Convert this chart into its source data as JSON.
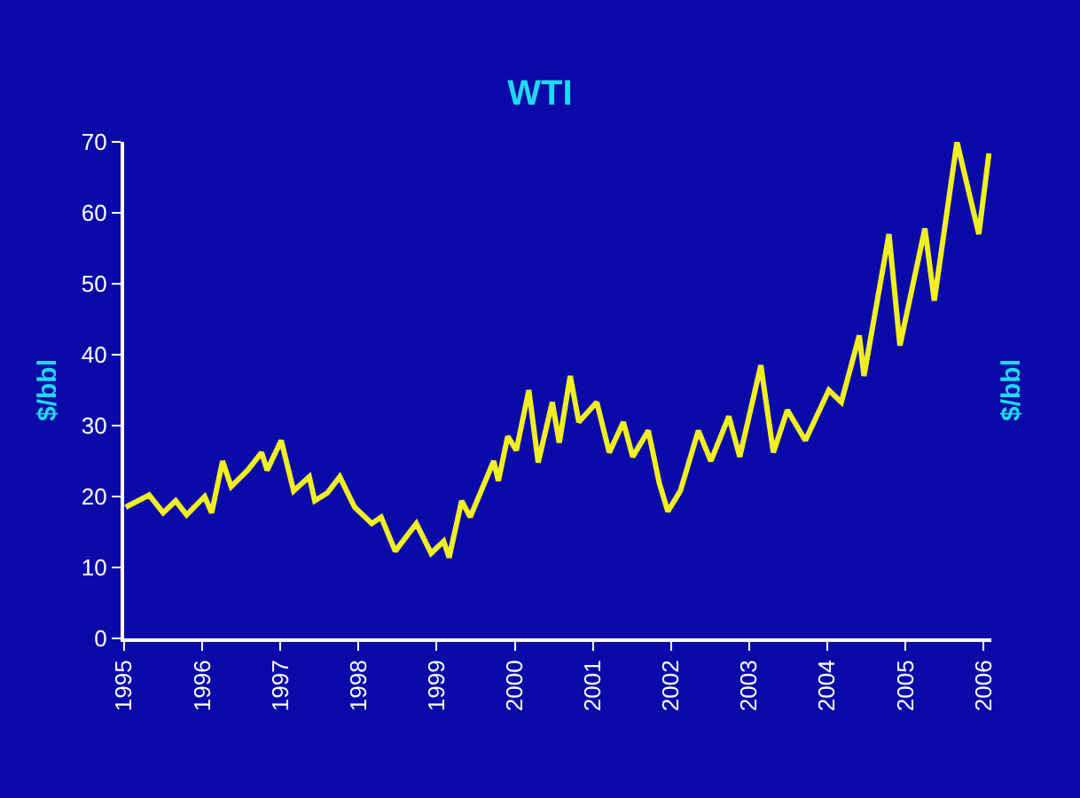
{
  "chart_data": {
    "type": "line",
    "title": "WTI",
    "ylabel": "$/bbl",
    "y2label": "$/bbl",
    "x": [
      1995.02,
      1995.32,
      1995.5,
      1995.66,
      1995.8,
      1996.03,
      1996.12,
      1996.26,
      1996.37,
      1996.58,
      1996.76,
      1996.83,
      1997.01,
      1997.17,
      1997.37,
      1997.44,
      1997.6,
      1997.76,
      1997.95,
      1998.17,
      1998.29,
      1998.47,
      1998.74,
      1998.93,
      1999.09,
      1999.16,
      1999.32,
      1999.43,
      1999.73,
      1999.79,
      1999.91,
      2000.02,
      2000.18,
      2000.3,
      2000.48,
      2000.57,
      2000.71,
      2000.82,
      2001.05,
      2001.21,
      2001.39,
      2001.51,
      2001.71,
      2001.85,
      2001.96,
      2002.12,
      2002.35,
      2002.51,
      2002.74,
      2002.88,
      2003.15,
      2003.31,
      2003.49,
      2003.72,
      2004.02,
      2004.18,
      2004.41,
      2004.47,
      2004.79,
      2004.93,
      2005.25,
      2005.37,
      2005.66,
      2005.94,
      2006.07
    ],
    "series": [
      {
        "color": "#f0f020",
        "values": [
          18.5,
          20.2,
          17.7,
          19.4,
          17.4,
          20,
          17.7,
          25,
          21.4,
          23.7,
          26.2,
          23.7,
          27.9,
          20.8,
          22.8,
          19.4,
          20.5,
          22.8,
          18.5,
          16.2,
          17.1,
          12.3,
          16.2,
          12,
          13.7,
          11.4,
          19.4,
          17.1,
          25,
          22.2,
          28.5,
          26.5,
          35,
          24.8,
          33.3,
          27.6,
          37,
          30.5,
          33.3,
          26.2,
          30.5,
          25.6,
          29.3,
          21.9,
          17.9,
          20.8,
          29.3,
          25,
          31.3,
          25.6,
          38.5,
          26.2,
          32.2,
          27.9,
          35,
          33.3,
          42.7,
          37,
          57,
          41.3,
          57.8,
          47.6,
          70,
          57,
          68.4
        ]
      }
    ],
    "xlim": [
      1995,
      2006.1
    ],
    "xticks": [
      1995,
      1996,
      1997,
      1998,
      1999,
      2000,
      2001,
      2002,
      2003,
      2004,
      2005,
      2006
    ],
    "ylim": [
      0,
      70
    ],
    "yticks": [
      0,
      10,
      20,
      30,
      40,
      50,
      60,
      70
    ],
    "grid": false,
    "marker": "none",
    "line_style": "solid"
  }
}
